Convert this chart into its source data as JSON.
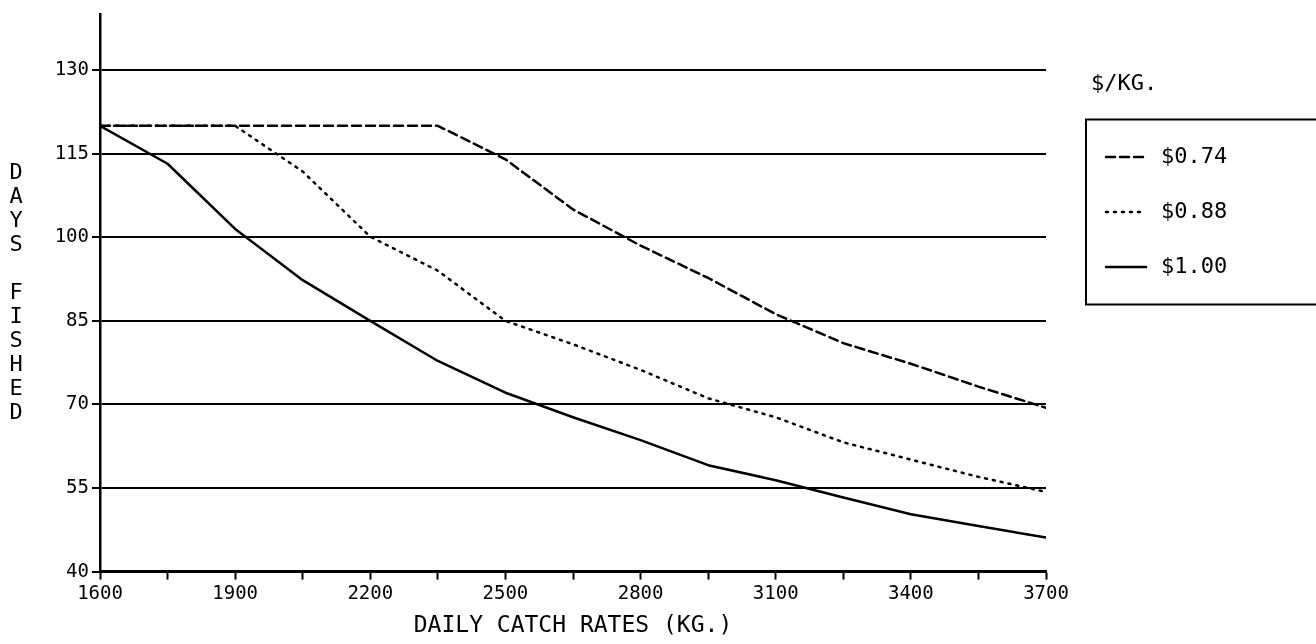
{
  "chart_data": {
    "type": "line",
    "xlabel": "DAILY CATCH RATES (KG.)",
    "ylabel": "DAYS FISHED",
    "legend_title": "$/KG.",
    "x": [
      1600,
      1750,
      1900,
      2050,
      2200,
      2350,
      2500,
      2650,
      2800,
      2950,
      3100,
      3250,
      3400,
      3550,
      3700
    ],
    "series": [
      {
        "name": "$0.74",
        "color": "#000000",
        "line_style": "dashed",
        "values": [
          120,
          120,
          120,
          120,
          120,
          120,
          114,
          105,
          98.5,
          92.7,
          86.2,
          81,
          77.3,
          73.2,
          69.4
        ]
      },
      {
        "name": "$0.88",
        "color": "#000000",
        "line_style": "dotted",
        "values": [
          120,
          120,
          120,
          111.8,
          100.1,
          94,
          85,
          80.8,
          76.2,
          71.1,
          67.7,
          63.2,
          60.1,
          57,
          54.3
        ]
      },
      {
        "name": "$1.00",
        "color": "#000000",
        "line_style": "solid",
        "values": [
          120,
          113.2,
          101.5,
          92.3,
          85,
          77.8,
          72.1,
          67.7,
          63.6,
          59.1,
          56.4,
          53.3,
          50.3,
          48.2,
          46.1
        ]
      }
    ],
    "xlim": [
      1600,
      3700
    ],
    "xticks": [
      1600,
      {
        "value": 1750,
        "label": null
      },
      1900,
      {
        "value": 2050,
        "label": null
      },
      2200,
      {
        "value": 2350,
        "label": null
      },
      2500,
      {
        "value": 2650,
        "label": null
      },
      2800,
      {
        "value": 2950,
        "label": null
      },
      3100,
      {
        "value": 3250,
        "label": null
      },
      3400,
      {
        "value": 3550,
        "label": null
      },
      3700
    ],
    "ylim": [
      40,
      140
    ],
    "yticks": [
      40,
      55,
      70,
      85,
      100,
      115,
      130
    ],
    "grid": "y",
    "legend": "right",
    "marker": "none"
  }
}
